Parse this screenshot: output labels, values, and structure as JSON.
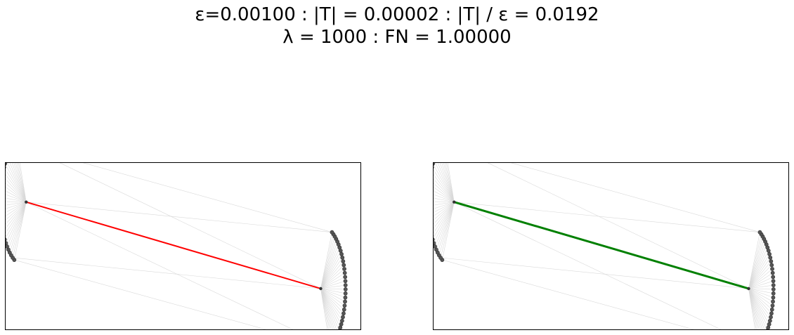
{
  "title": {
    "line1": "ε=0.00100 : |T| = 0.00002 : |T| / ε = 0.0192",
    "line2": "λ = 1000 : FN = 1.00000"
  },
  "diagram": {
    "description_free": true,
    "node_color": "#555555",
    "edge_color": "#d9d9d9",
    "hub_a": [
      0.058,
      0.235
    ],
    "hub_b": [
      0.888,
      0.755
    ],
    "arc_a": {
      "center": [
        0.058,
        0.235
      ],
      "r_x": 0.074,
      "r_y": 0.39,
      "from_deg": 243,
      "to_deg": 112,
      "count": 34,
      "dir": -1
    },
    "arc_b": {
      "center": [
        0.888,
        0.755
      ],
      "r_x": 0.07,
      "r_y": 0.38,
      "from_deg": -68,
      "to_deg": 63,
      "count": 36,
      "dir": 1
    },
    "panels": [
      {
        "name": "left-panel",
        "highlight_color": "#ff0000",
        "highlight_width": 2
      },
      {
        "name": "right-panel",
        "highlight_color": "#008000",
        "highlight_width": 3
      }
    ]
  }
}
